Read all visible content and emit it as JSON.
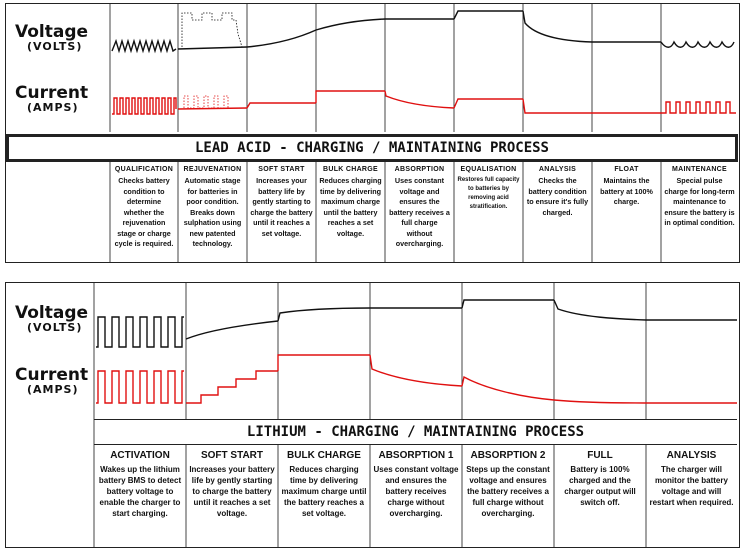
{
  "lead_acid": {
    "voltage_label": "Voltage",
    "voltage_unit": "(VOLTS)",
    "current_label": "Current",
    "current_unit": "(AMPS)",
    "title": "LEAD ACID - CHARGING / MAINTAINING PROCESS",
    "stages": [
      {
        "name": "QUALIFICATION",
        "desc": "Checks battery condition to determine whether the rejuvenation stage or charge cycle is required."
      },
      {
        "name": "REJUVENATION",
        "desc": "Automatic stage for batteries in poor condition. Breaks down sulphation using new patented technology."
      },
      {
        "name": "SOFT START",
        "desc": "Increases your battery life by gently starting to charge the battery until it reaches a set voltage."
      },
      {
        "name": "BULK CHARGE",
        "desc": "Reduces charging time by delivering maximum charge until the battery reaches a set voltage."
      },
      {
        "name": "ABSORPTION",
        "desc": "Uses constant voltage and ensures the battery receives a full charge without overcharging."
      },
      {
        "name": "EQUALISATION",
        "desc": "Restores full capacity to batteries by removing acid stratification."
      },
      {
        "name": "ANALYSIS",
        "desc": "Checks the battery condition to ensure it's fully charged."
      },
      {
        "name": "FLOAT",
        "desc": "Maintains the battery at 100% charge."
      },
      {
        "name": "MAINTENANCE",
        "desc": "Special pulse charge for long-term maintenance to ensure the battery is in optimal condition."
      }
    ]
  },
  "lithium": {
    "voltage_label": "Voltage",
    "voltage_unit": "(VOLTS)",
    "current_label": "Current",
    "current_unit": "(AMPS)",
    "title": "LITHIUM - CHARGING / MAINTAINING PROCESS",
    "stages": [
      {
        "name": "ACTIVATION",
        "desc": "Wakes up the lithium battery BMS to detect battery voltage to enable the charger to start charging."
      },
      {
        "name": "SOFT START",
        "desc": "Increases your battery life by gently starting to charge the battery until it reaches a set voltage."
      },
      {
        "name": "BULK CHARGE",
        "desc": "Reduces charging time by delivering maximum charge until the battery reaches a set voltage."
      },
      {
        "name": "ABSORPTION 1",
        "desc": "Uses constant voltage and ensures the battery receives charge without overcharging."
      },
      {
        "name": "ABSORPTION 2",
        "desc": "Steps up the constant voltage and ensures the battery receives a full charge without overcharging."
      },
      {
        "name": "FULL",
        "desc": "Battery is 100% charged and the charger output will switch off."
      },
      {
        "name": "ANALYSIS",
        "desc": "The charger will monitor the battery voltage and will restart when required."
      }
    ]
  },
  "colors": {
    "voltage_line": "#111111",
    "current_line": "#e01010",
    "grid": "#444444"
  }
}
